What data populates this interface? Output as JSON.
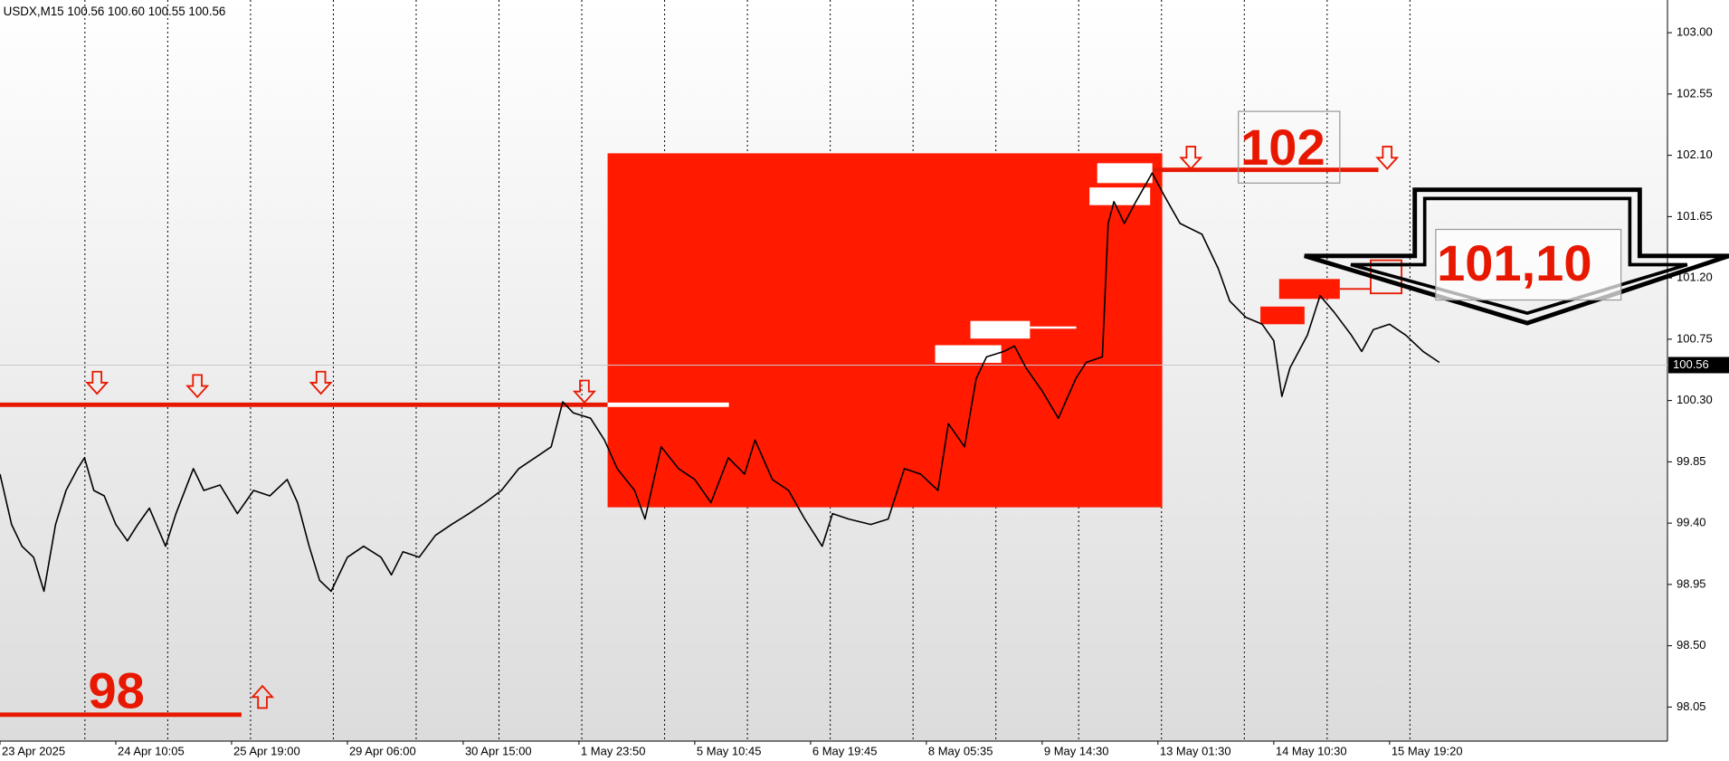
{
  "chart_data": {
    "type": "line",
    "header": "USDX,M15  100.56 100.60 100.55 100.56",
    "xlim": [
      0,
      144
    ],
    "xticks": [
      {
        "value": 0,
        "label": "23 Apr 2025"
      },
      {
        "value": 10,
        "label": "24 Apr 10:05"
      },
      {
        "value": 20,
        "label": "25 Apr 19:00"
      },
      {
        "value": 30,
        "label": "29 Apr 06:00"
      },
      {
        "value": 40,
        "label": "30 Apr 15:00"
      },
      {
        "value": 50,
        "label": "1 May 23:50"
      },
      {
        "value": 60,
        "label": "5 May 10:45"
      },
      {
        "value": 70,
        "label": "6 May 19:45"
      },
      {
        "value": 80,
        "label": "8 May 05:35"
      },
      {
        "value": 90,
        "label": "9 May 14:30"
      },
      {
        "value": 100,
        "label": "13 May 01:30"
      },
      {
        "value": 110,
        "label": "14 May 10:30"
      },
      {
        "value": 120,
        "label": "15 May 19:20"
      }
    ],
    "ylim": [
      97.8,
      103.24
    ],
    "yticks": [
      98.05,
      {
        "value": 98.5,
        "label": "98.50"
      },
      98.95,
      {
        "value": 99.4,
        "label": "99.40"
      },
      99.85,
      {
        "value": 100.3,
        "label": "100.30"
      },
      100.75,
      {
        "value": 101.2,
        "label": "101.20"
      },
      101.65,
      {
        "value": 102.1,
        "label": "102.10"
      },
      102.55,
      {
        "value": 103,
        "label": "103.00"
      }
    ],
    "last_price": 100.56,
    "annotations": [
      "102",
      "98",
      "101,10"
    ],
    "series": [
      {
        "color": "#000000",
        "x": [
          0,
          1.0,
          1.9,
          2.9,
          3.8,
          4.8,
          5.7,
          6.7,
          7.3,
          8.1,
          9.0,
          10.0,
          11.0,
          11.9,
          12.9,
          14.3,
          15.2,
          16.7,
          17.6,
          19.0,
          20.5,
          21.9,
          23.3,
          24.8,
          25.7,
          26.7,
          27.6,
          28.6,
          30.0,
          31.4,
          32.9,
          33.8,
          34.8,
          36.2,
          37.6,
          39.0,
          40.5,
          41.9,
          43.3,
          44.8,
          46.2,
          47.6,
          48.6,
          49.5,
          51.0,
          52.2,
          53.3,
          54.8,
          55.7,
          57.1,
          58.6,
          60.0,
          61.4,
          62.9,
          64.3,
          65.2,
          66.7,
          68.1,
          69.5,
          71.0,
          71.9,
          73.3,
          75.2,
          76.7,
          78.1,
          79.5,
          81.0,
          81.9,
          83.3,
          84.3,
          85.2,
          86.7,
          87.6,
          88.6,
          90.0,
          91.4,
          92.9,
          93.8,
          95.2,
          95.7,
          96.2,
          97.1,
          98.1,
          99.5,
          100.5,
          101.9,
          103.8,
          105.2,
          106.2,
          107.6,
          109.0,
          110.0,
          110.7,
          111.4,
          112.9,
          114.0,
          115.2,
          116.7,
          117.6,
          118.6,
          120.0,
          121.4,
          122.9,
          124.3
        ],
        "values": [
          99.76,
          99.39,
          99.23,
          99.15,
          98.9,
          99.39,
          99.64,
          99.8,
          99.88,
          99.64,
          99.6,
          99.39,
          99.27,
          99.39,
          99.51,
          99.23,
          99.47,
          99.8,
          99.64,
          99.68,
          99.47,
          99.64,
          99.6,
          99.72,
          99.55,
          99.23,
          98.98,
          98.9,
          99.15,
          99.23,
          99.15,
          99.02,
          99.19,
          99.15,
          99.31,
          99.39,
          99.47,
          99.55,
          99.64,
          99.8,
          99.88,
          99.96,
          100.29,
          100.21,
          100.17,
          100.01,
          99.8,
          99.64,
          99.43,
          99.96,
          99.8,
          99.72,
          99.55,
          99.88,
          99.76,
          100.01,
          99.72,
          99.64,
          99.43,
          99.23,
          99.47,
          99.43,
          99.39,
          99.43,
          99.8,
          99.76,
          99.64,
          100.13,
          99.96,
          100.46,
          100.62,
          100.66,
          100.7,
          100.54,
          100.37,
          100.17,
          100.46,
          100.58,
          100.62,
          101.6,
          101.76,
          101.6,
          101.76,
          101.97,
          101.81,
          101.6,
          101.52,
          101.27,
          101.03,
          100.91,
          100.86,
          100.74,
          100.33,
          100.54,
          100.78,
          101.07,
          100.95,
          100.78,
          100.66,
          100.82,
          100.86,
          100.78,
          100.66,
          100.58
        ]
      }
    ]
  }
}
